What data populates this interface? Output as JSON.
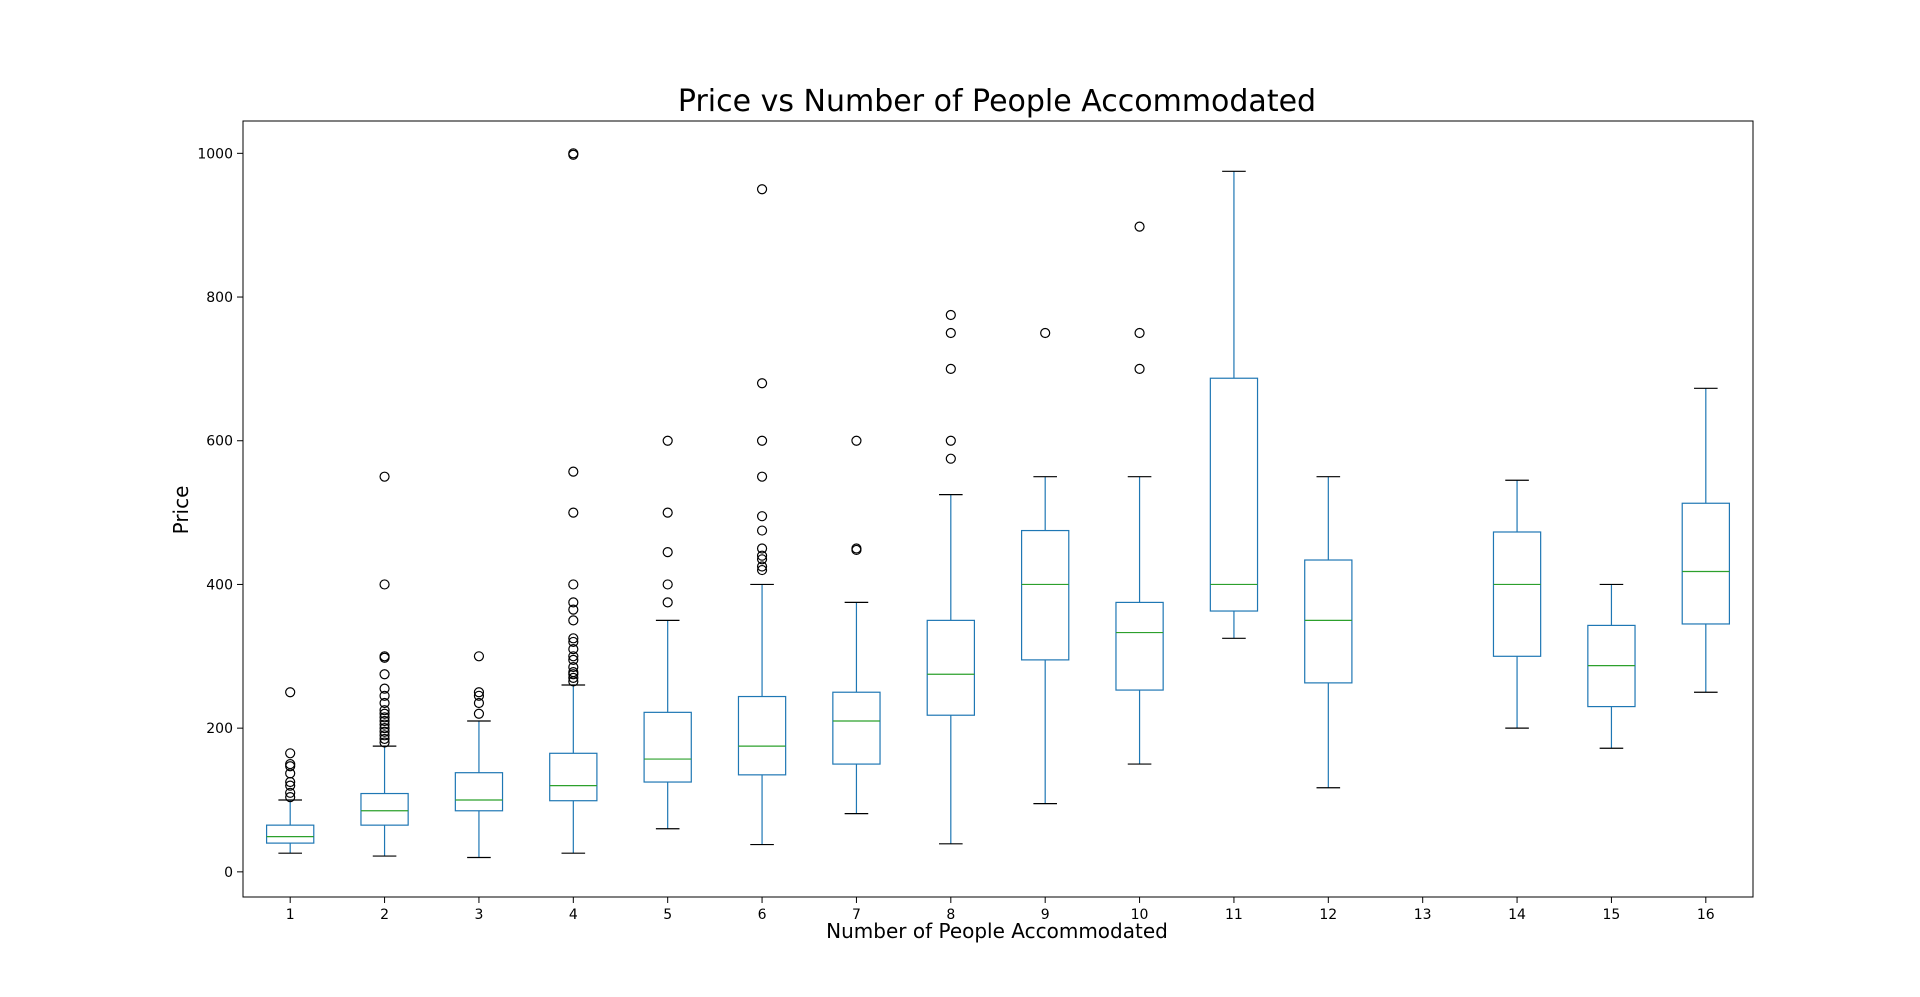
{
  "chart_data": {
    "type": "box",
    "title": "Price vs Number of People Accommodated",
    "xlabel": "Number of People Accommodated",
    "ylabel": "Price",
    "ylim": [
      -35,
      1045
    ],
    "yticks": [
      0,
      200,
      400,
      600,
      800,
      1000
    ],
    "grid": false,
    "colors": {
      "box": "#1f77b4",
      "median": "#2ca02c",
      "whisker_cap": "#000000",
      "outlier": "#000000"
    },
    "categories": [
      "1",
      "2",
      "3",
      "4",
      "5",
      "6",
      "7",
      "8",
      "9",
      "10",
      "11",
      "12",
      "13",
      "14",
      "15",
      "16"
    ],
    "boxes": [
      {
        "category": "1",
        "whislo": 26,
        "q1": 40,
        "median": 49,
        "q3": 65,
        "whishi": 100,
        "fliers": [
          104,
          110,
          120,
          125,
          137,
          147,
          150,
          165,
          250
        ]
      },
      {
        "category": "2",
        "whislo": 22,
        "q1": 65,
        "median": 85,
        "q3": 109,
        "whishi": 175,
        "fliers": [
          180,
          185,
          190,
          195,
          200,
          205,
          210,
          215,
          220,
          225,
          235,
          245,
          255,
          275,
          298,
          300,
          400,
          550
        ]
      },
      {
        "category": "3",
        "whislo": 20,
        "q1": 85,
        "median": 100,
        "q3": 138,
        "whishi": 210,
        "fliers": [
          220,
          235,
          245,
          250,
          300
        ]
      },
      {
        "category": "4",
        "whislo": 26,
        "q1": 99,
        "median": 120,
        "q3": 165,
        "whishi": 260,
        "fliers": [
          265,
          270,
          275,
          278,
          285,
          295,
          300,
          310,
          320,
          325,
          350,
          365,
          375,
          400,
          500,
          557,
          998,
          1000
        ]
      },
      {
        "category": "5",
        "whislo": 60,
        "q1": 125,
        "median": 157,
        "q3": 222,
        "whishi": 350,
        "fliers": [
          375,
          400,
          445,
          500,
          600
        ]
      },
      {
        "category": "6",
        "whislo": 38,
        "q1": 135,
        "median": 175,
        "q3": 244,
        "whishi": 400,
        "fliers": [
          420,
          425,
          435,
          440,
          450,
          475,
          495,
          550,
          600,
          680,
          950
        ]
      },
      {
        "category": "7",
        "whislo": 81,
        "q1": 150,
        "median": 210,
        "q3": 250,
        "whishi": 375,
        "fliers": [
          448,
          450,
          600
        ]
      },
      {
        "category": "8",
        "whislo": 39,
        "q1": 218,
        "median": 275,
        "q3": 350,
        "whishi": 525,
        "fliers": [
          575,
          600,
          700,
          750,
          775
        ]
      },
      {
        "category": "9",
        "whislo": 95,
        "q1": 295,
        "median": 400,
        "q3": 475,
        "whishi": 550,
        "fliers": [
          750
        ]
      },
      {
        "category": "10",
        "whislo": 150,
        "q1": 253,
        "median": 333,
        "q3": 375,
        "whishi": 550,
        "fliers": [
          700,
          750,
          898
        ]
      },
      {
        "category": "11",
        "whislo": 325,
        "q1": 363,
        "median": 400,
        "q3": 687,
        "whishi": 975,
        "fliers": []
      },
      {
        "category": "12",
        "whislo": 117,
        "q1": 263,
        "median": 350,
        "q3": 434,
        "whishi": 550,
        "fliers": []
      },
      {
        "category": "13"
      },
      {
        "category": "14",
        "whislo": 200,
        "q1": 300,
        "median": 400,
        "q3": 473,
        "whishi": 545,
        "fliers": []
      },
      {
        "category": "15",
        "whislo": 172,
        "q1": 230,
        "median": 287,
        "q3": 343,
        "whishi": 400,
        "fliers": []
      },
      {
        "category": "16",
        "whislo": 250,
        "q1": 345,
        "median": 418,
        "q3": 513,
        "whishi": 673,
        "fliers": []
      }
    ]
  }
}
